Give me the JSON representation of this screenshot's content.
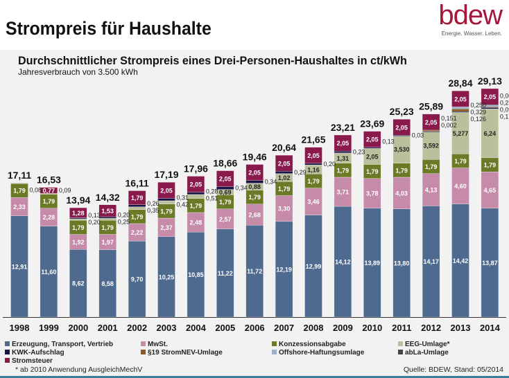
{
  "header": {
    "title": "Strompreis für Haushalte",
    "logo_text": "bdew",
    "logo_tagline": "Energie. Wasser. Leben."
  },
  "chart_data": {
    "type": "bar",
    "stacked": true,
    "title": "Durchschnittlicher Strompreis eines Drei-Personen-Haushaltes in ct/kWh",
    "subtitle": "Jahresverbrauch von 3.500 kWh",
    "xlabel": "",
    "ylabel": "",
    "grid": false,
    "legend_position": "bottom",
    "categories": [
      "1998",
      "1999",
      "2000",
      "2001",
      "2002",
      "2003",
      "2004",
      "2005",
      "2006",
      "2007",
      "2008",
      "2009",
      "2010",
      "2011",
      "2012",
      "2013",
      "2014"
    ],
    "totals": [
      "17,11",
      "16,53",
      "13,94",
      "14,32",
      "16,11",
      "17,19",
      "17,96",
      "18,66",
      "19,46",
      "20,64",
      "21,65",
      "23,21",
      "23,69",
      "25,23",
      "25,89",
      "28,84",
      "29,13"
    ],
    "series": [
      {
        "name": "Erzeugung, Transport, Vertrieb",
        "color": "#4f6a8f",
        "values": [
          "12,91",
          "11,60",
          "8,62",
          "8,58",
          "9,70",
          "10,25",
          "10,85",
          "11,22",
          "11,72",
          "12,19",
          "12,99",
          "14,12",
          "13,89",
          "13,80",
          "14,17",
          "14,42",
          "13,87"
        ]
      },
      {
        "name": "MwSt.",
        "color": "#c58ba8",
        "values": [
          "2,33",
          "2,28",
          "1,92",
          "1,97",
          "2,22",
          "2,37",
          "2,48",
          "2,57",
          "2,68",
          "3,30",
          "3,46",
          "3,71",
          "3,78",
          "4,03",
          "4,13",
          "4,60",
          "4,65"
        ]
      },
      {
        "name": "Konzessionsabgabe",
        "color": "#6b7a26",
        "values": [
          "1,79",
          "1,79",
          "1,79",
          "1,79",
          "1,79",
          "1,79",
          "1,79",
          "1,79",
          "1,79",
          "1,79",
          "1,79",
          "1,79",
          "1,79",
          "1,79",
          "1,79",
          "1,79",
          "1,79"
        ]
      },
      {
        "name": "EEG-Umlage*",
        "color": "#bcbf9c",
        "values": [
          "0,08",
          "0,09",
          "0,20",
          "0,25",
          "0,35",
          "0,42",
          "0,51",
          "0,69",
          "0,88",
          "1,02",
          "1,16",
          "1,31",
          "2,05",
          "3,530",
          "3,592",
          "5,277",
          "6,24"
        ]
      },
      {
        "name": "KWK-Aufschlag",
        "color": "#161548",
        "values": [
          null,
          null,
          "0,13",
          "0,20",
          "0,26",
          "0,31",
          "0,28",
          "0,34",
          "0,34",
          "0,29",
          "0,20",
          "0,23",
          "0,13",
          "0,03",
          "0,002",
          "0,126",
          "0,178"
        ]
      },
      {
        "name": "§19 StromNEV-Umlage",
        "color": "#8c5a24",
        "values": [
          null,
          null,
          null,
          null,
          null,
          null,
          null,
          null,
          null,
          null,
          null,
          null,
          null,
          null,
          "0,151",
          "0,329",
          "0,092"
        ]
      },
      {
        "name": "Offshore-Haftungsumlage",
        "color": "#9fb2cc",
        "values": [
          null,
          null,
          null,
          null,
          null,
          null,
          null,
          null,
          null,
          null,
          null,
          null,
          null,
          null,
          null,
          "0,250",
          "0,250"
        ]
      },
      {
        "name": "abLa-Umlage",
        "color": "#444444",
        "values": [
          null,
          null,
          null,
          null,
          null,
          null,
          null,
          null,
          null,
          null,
          null,
          null,
          null,
          null,
          null,
          null,
          "0,009"
        ]
      },
      {
        "name": "Stromsteuer",
        "color": "#8a1a4c",
        "values": [
          null,
          "0,77",
          "1,28",
          "1,53",
          "1,79",
          "2,05",
          "2,05",
          "2,05",
          "2,05",
          "2,05",
          "2,05",
          "2,05",
          "2,05",
          "2,05",
          "2,05",
          "2,05",
          "2,05"
        ]
      }
    ]
  },
  "footer": {
    "footnote": "* ab 2010 Anwendung AusgleichMechV",
    "source": "Quelle: BDEW, Stand: 05/2014"
  }
}
